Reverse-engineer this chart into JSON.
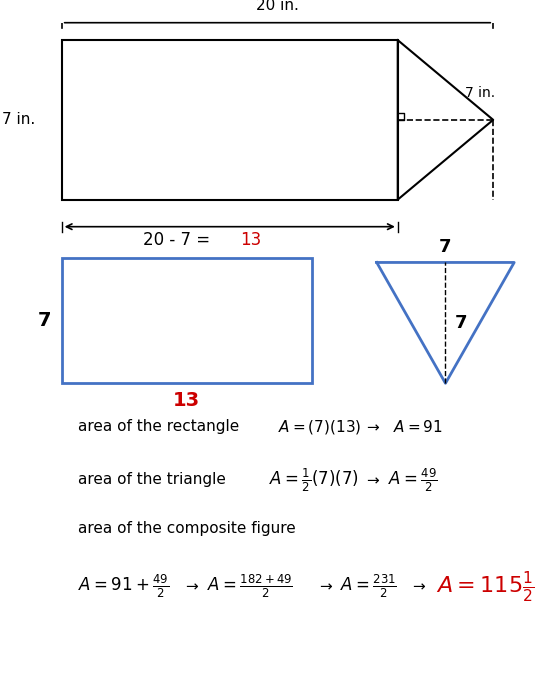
{
  "bg_color": "#ffffff",
  "black": "#000000",
  "red": "#cc0000",
  "blue": "#4472c4",
  "dark_blue": "#2e5fa3",
  "top_fig_label_20in": "20 in.",
  "top_fig_label_7in": "7 in.",
  "top_fig_label_7": "7 in.",
  "subtract_label_black": "20 - 7 = ",
  "subtract_label_red": "13",
  "rect_label_7": "7",
  "rect_label_13": "13",
  "tri_label_7h": "7",
  "tri_label_7b": "7",
  "line1_plain": "area of the rectangle",
  "line1_math": "A\\,{=}\\,(7)(13)",
  "line1_arrow": "\\rightarrow",
  "line1_result": "A\\,{=}\\,91",
  "line2_plain": "area of the triangle",
  "line2_math": "A\\,{=}\\,\\frac{1}{2}(7)(7)",
  "line2_arrow": "\\rightarrow",
  "line2_result": "A\\,{=}\\,\\frac{49}{2}",
  "line3_plain": "area of the composite figure",
  "line4_part1": "A\\,{=}\\,91{+}\\frac{49}{2}",
  "line4_arrow1": "\\rightarrow",
  "line4_part2": "A\\,{=}\\,\\frac{182{+}49}{2}",
  "line4_arrow2": "\\rightarrow",
  "line4_part3": "A\\,{=}\\,\\frac{231}{2}",
  "line4_arrow3": "\\rightarrow",
  "line4_final": "A\\,{=}\\,115\\tfrac{1}{2}"
}
